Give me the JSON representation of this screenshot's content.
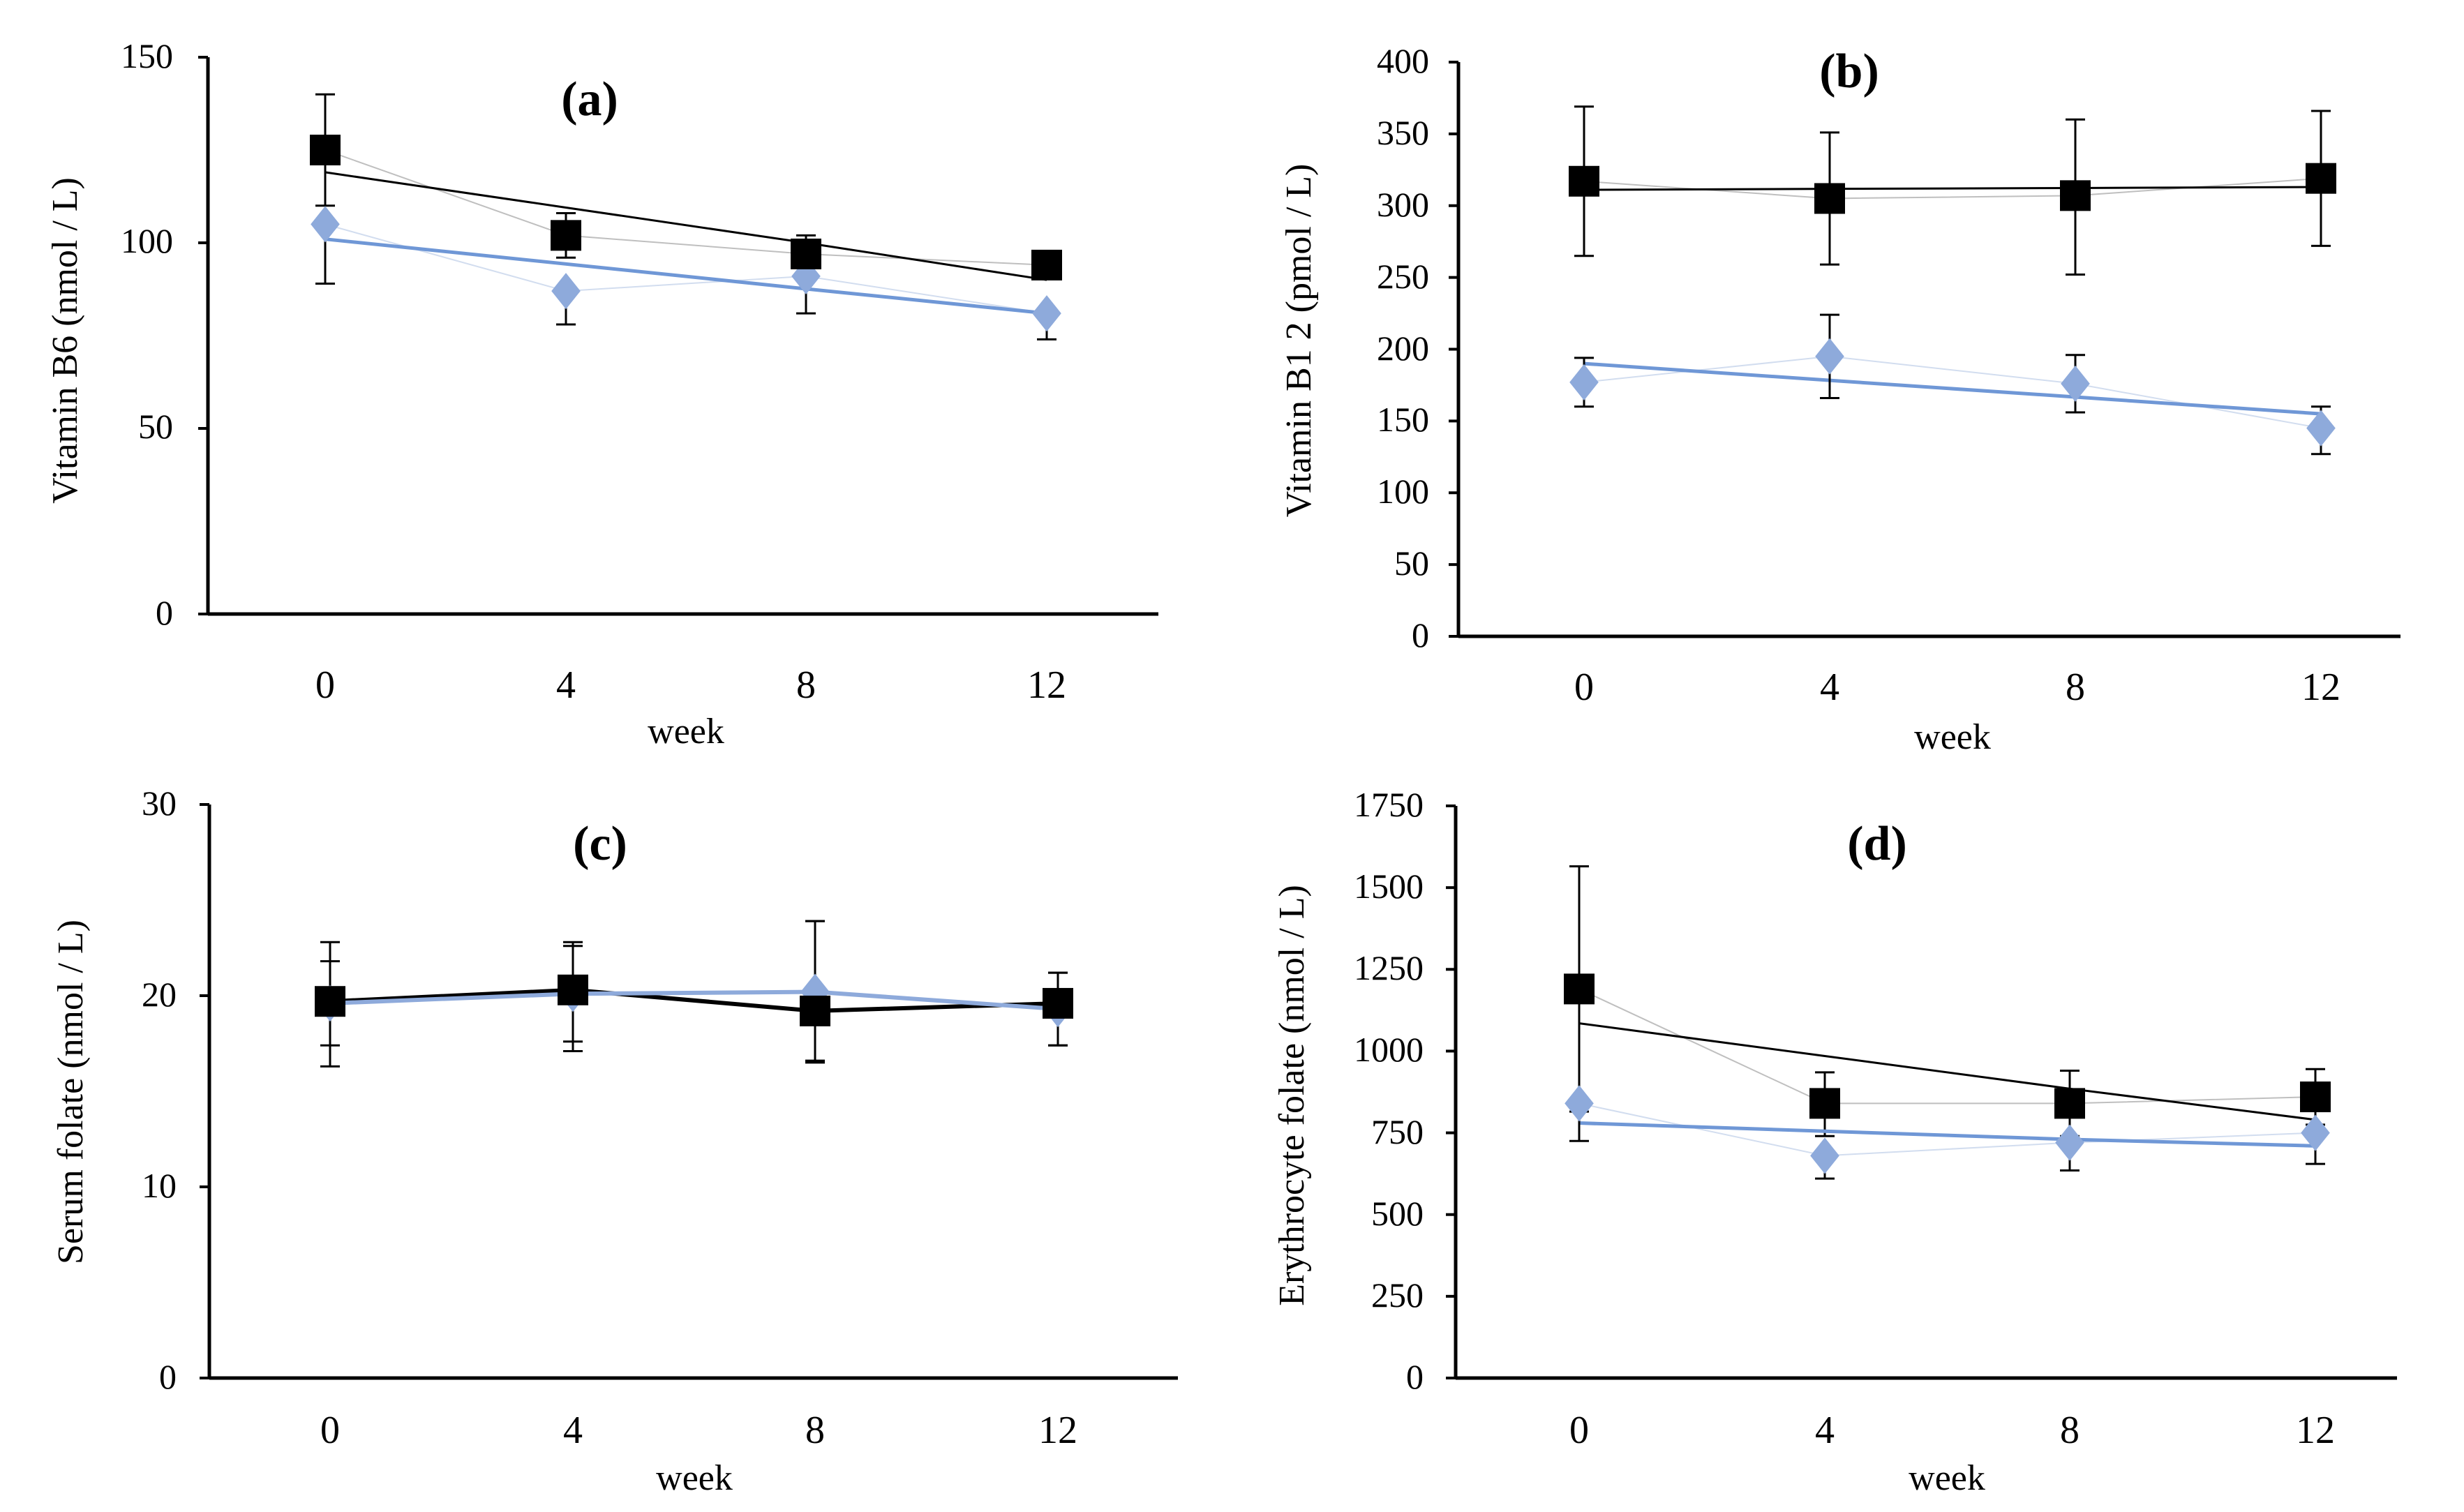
{
  "colors": {
    "group_dark": "#000000",
    "group_light": "#8eaadb",
    "trend_light": "#6f97d6"
  },
  "chart_data": [
    {
      "type": "line",
      "title": "(a)",
      "xlabel": "week",
      "ylabel": "Vitamin B6 (nmol / L)",
      "x": [
        0,
        4,
        8,
        12
      ],
      "x_ticks": [
        "0",
        "4",
        "8",
        "12"
      ],
      "ylim": [
        0,
        150
      ],
      "y_ticks": [
        "0",
        "50",
        "100",
        "150"
      ],
      "connect_points": false,
      "series": [
        {
          "name": "black squares",
          "marker": "square",
          "values": [
            125,
            102,
            97,
            94
          ],
          "err_plus": [
            15,
            6,
            5,
            0
          ],
          "err_minus": [
            15,
            6,
            5,
            0
          ],
          "trend": [
            119,
            109.5,
            100,
            90
          ]
        },
        {
          "name": "blue diamonds",
          "marker": "diamond",
          "values": [
            105,
            87,
            91,
            81
          ],
          "err_plus": [
            0,
            0,
            0,
            0
          ],
          "err_minus": [
            16,
            9,
            10,
            7
          ],
          "trend": [
            101,
            94.3,
            87.6,
            81
          ]
        }
      ]
    },
    {
      "type": "line",
      "title": "(b)",
      "xlabel": "week",
      "ylabel": "Vitamin B1 2 (pmol / L)",
      "x": [
        0,
        4,
        8,
        12
      ],
      "x_ticks": [
        "0",
        "4",
        "8",
        "12"
      ],
      "ylim": [
        0,
        400
      ],
      "y_ticks": [
        "0",
        "50",
        "100",
        "150",
        "200",
        "250",
        "300",
        "350",
        "400"
      ],
      "connect_points": false,
      "series": [
        {
          "name": "black squares",
          "marker": "square",
          "values": [
            317,
            305,
            307,
            319
          ],
          "err_plus": [
            52,
            46,
            53,
            47
          ],
          "err_minus": [
            52,
            46,
            55,
            47
          ],
          "trend": [
            311,
            311.7,
            312.3,
            313
          ]
        },
        {
          "name": "blue diamonds",
          "marker": "diamond",
          "values": [
            177,
            195,
            176,
            145
          ],
          "err_plus": [
            17,
            29,
            20,
            15
          ],
          "err_minus": [
            17,
            29,
            20,
            18
          ],
          "trend": [
            190,
            178.3,
            166.7,
            155
          ]
        }
      ]
    },
    {
      "type": "line",
      "title": "(c)",
      "xlabel": "week",
      "ylabel": "Serum folate (nmol / L)",
      "x": [
        0,
        4,
        8,
        12
      ],
      "x_ticks": [
        "0",
        "4",
        "8",
        "12"
      ],
      "ylim": [
        0,
        30
      ],
      "y_ticks": [
        "0",
        "10",
        "20",
        "30"
      ],
      "connect_points": true,
      "series": [
        {
          "name": "black squares",
          "marker": "square",
          "values": [
            19.7,
            20.3,
            19.2,
            19.6
          ],
          "err_plus": [
            3.1,
            2.5,
            4.7,
            1.6
          ],
          "err_minus": [
            3.4,
            3.2,
            2.6,
            2.2
          ],
          "trend": [
            19.8,
            19.8,
            19.8,
            19.8
          ]
        },
        {
          "name": "blue diamonds",
          "marker": "diamond",
          "values": [
            19.6,
            20.1,
            20.2,
            19.3
          ],
          "err_plus": [
            2.2,
            2.5,
            3.7,
            1.9
          ],
          "err_minus": [
            2.2,
            2.5,
            3.7,
            1.9
          ],
          "trend": [
            19.7,
            19.7,
            19.7,
            19.7
          ]
        }
      ]
    },
    {
      "type": "line",
      "title": "(d)",
      "xlabel": "week",
      "ylabel": "Erythrocyte folate (nmol / L)",
      "x": [
        0,
        4,
        8,
        12
      ],
      "x_ticks": [
        "0",
        "4",
        "8",
        "12"
      ],
      "ylim": [
        0,
        1750
      ],
      "y_ticks": [
        "0",
        "250",
        "500",
        "750",
        "1000",
        "1250",
        "1500",
        "1750"
      ],
      "connect_points": false,
      "series": [
        {
          "name": "black squares",
          "marker": "square",
          "values": [
            1190,
            840,
            840,
            860
          ],
          "err_plus": [
            375,
            95,
            100,
            85
          ],
          "err_minus": [
            375,
            100,
            100,
            85
          ],
          "trend": [
            1085,
            985,
            885,
            790
          ]
        },
        {
          "name": "blue diamonds",
          "marker": "diamond",
          "values": [
            840,
            680,
            720,
            750
          ],
          "err_plus": [
            0,
            0,
            0,
            0
          ],
          "err_minus": [
            115,
            70,
            85,
            95
          ],
          "trend": [
            780,
            755,
            730,
            710
          ]
        }
      ]
    }
  ]
}
